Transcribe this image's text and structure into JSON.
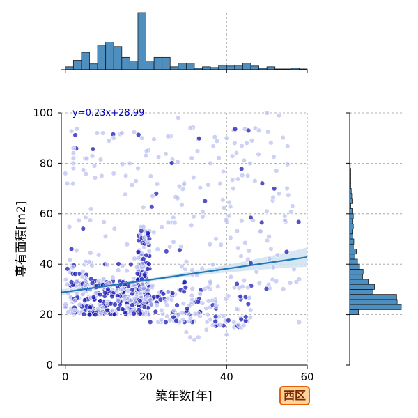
{
  "badge": "西区",
  "colors": {
    "hist_fill": "#4f8fc0",
    "hist_edge": "#1a1a1a",
    "point_light": "#b8bdf0",
    "point_dark": "#1a1ab4",
    "fit_line": "#1f77b4",
    "ci_band": "#cfe3f1",
    "grid": "#9a9a9a",
    "equation": "#0000bb"
  },
  "chart_data": {
    "type": "scatter",
    "xlabel": "築年数[年]",
    "ylabel": "専有面積[m2]",
    "xlim": [
      -1,
      60
    ],
    "ylim": [
      0,
      100
    ],
    "xticks": [
      0,
      20,
      40,
      60
    ],
    "yticks": [
      0,
      20,
      40,
      60,
      80,
      100
    ],
    "grid": true,
    "regression": {
      "equation": "y=0.23x+28.99",
      "slope": 0.23,
      "intercept": 28.99,
      "x_range": [
        -1,
        60
      ]
    },
    "marginal_x_histogram": {
      "bin_width": 2,
      "bin_starts": [
        0,
        2,
        4,
        6,
        8,
        10,
        12,
        14,
        16,
        18,
        20,
        22,
        24,
        26,
        28,
        30,
        32,
        34,
        36,
        38,
        40,
        42,
        44,
        46,
        48,
        50,
        52,
        54,
        56,
        58
      ],
      "counts": [
        4,
        13,
        24,
        8,
        34,
        38,
        32,
        17,
        12,
        79,
        12,
        17,
        17,
        4,
        9,
        9,
        2,
        4,
        3,
        6,
        5,
        6,
        9,
        5,
        2,
        4,
        1,
        1,
        2,
        1
      ]
    },
    "marginal_y_histogram": {
      "bin_width": 2,
      "bin_starts": [
        20,
        22,
        24,
        26,
        28,
        30,
        32,
        34,
        36,
        38,
        40,
        42,
        44,
        46,
        48,
        50,
        52,
        54,
        56,
        58,
        60,
        62,
        64,
        66,
        68,
        70,
        72,
        74,
        76,
        78
      ],
      "counts": [
        17,
        100,
        92,
        91,
        45,
        48,
        36,
        25,
        26,
        19,
        15,
        10,
        13,
        7,
        8,
        6,
        5,
        7,
        5,
        7,
        5,
        2,
        5,
        4,
        3,
        2,
        2,
        2,
        2,
        1
      ]
    },
    "points_clusters": [
      {
        "x_range": [
          0,
          6
        ],
        "y_range": [
          20,
          40
        ],
        "count": 75,
        "dark_ratio": 0.45
      },
      {
        "x_range": [
          6,
          18
        ],
        "y_range": [
          20,
          35
        ],
        "count": 190,
        "dark_ratio": 0.55
      },
      {
        "x_range": [
          18,
          21
        ],
        "y_range": [
          20,
          55
        ],
        "count": 150,
        "dark_ratio": 0.55
      },
      {
        "x_range": [
          21,
          36
        ],
        "y_range": [
          17,
          30
        ],
        "count": 90,
        "dark_ratio": 0.35
      },
      {
        "x_range": [
          36,
          46
        ],
        "y_range": [
          15,
          28
        ],
        "count": 45,
        "dark_ratio": 0.35
      },
      {
        "x_range": [
          0,
          58
        ],
        "y_range": [
          30,
          95
        ],
        "count": 240,
        "dark_ratio": 0.15
      }
    ],
    "points_extra": [
      [
        28,
        98
      ],
      [
        31,
        94
      ],
      [
        50,
        100
      ],
      [
        53,
        99
      ],
      [
        48,
        93
      ],
      [
        40,
        90
      ],
      [
        42,
        88
      ],
      [
        45,
        88
      ],
      [
        14,
        92
      ],
      [
        19,
        90
      ],
      [
        12,
        90
      ],
      [
        2,
        86
      ],
      [
        2,
        84
      ],
      [
        2,
        82
      ],
      [
        2,
        80
      ],
      [
        2,
        78
      ],
      [
        0,
        76
      ],
      [
        20,
        83
      ],
      [
        16,
        80
      ],
      [
        36,
        80
      ],
      [
        18,
        78
      ],
      [
        12,
        76
      ],
      [
        15,
        75
      ],
      [
        9,
        75
      ],
      [
        33,
        11
      ],
      [
        32,
        10
      ],
      [
        40,
        12
      ],
      [
        35,
        14
      ],
      [
        30,
        13
      ],
      [
        31,
        11
      ],
      [
        58,
        17
      ],
      [
        58,
        34
      ],
      [
        55,
        70
      ],
      [
        53,
        68
      ],
      [
        47,
        73
      ]
    ]
  }
}
